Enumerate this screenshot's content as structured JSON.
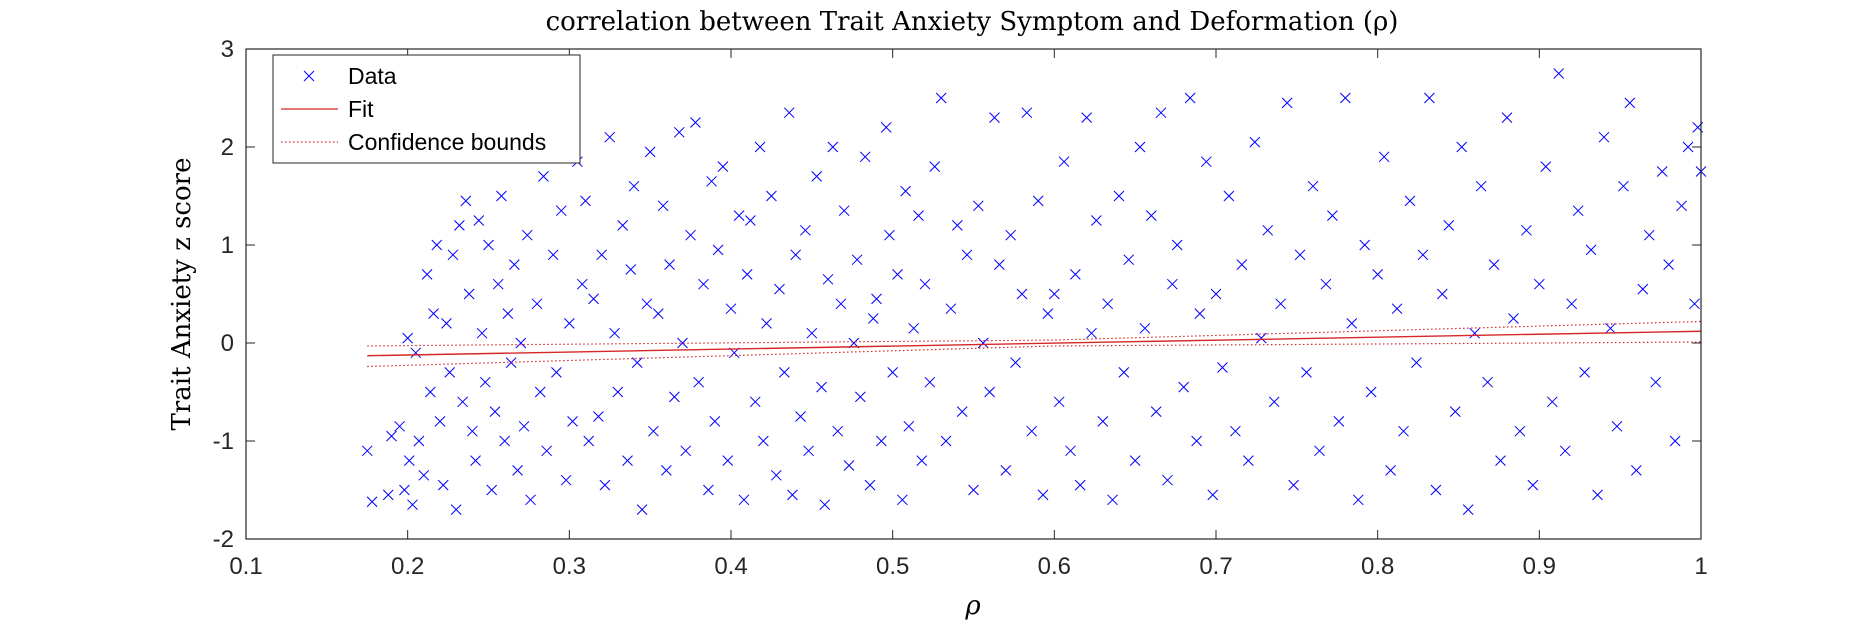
{
  "colors": {
    "data": "#0000ff",
    "fit": "#d62728",
    "bounds": "#d62728",
    "axis": "#262626"
  },
  "chart_data": {
    "type": "scatter",
    "title": "correlation between Trait Anxiety Symptom and Deformation (ρ)",
    "xlabel": "ρ",
    "ylabel": "Trait Anxiety z score",
    "xlim": [
      0.1,
      1.0
    ],
    "ylim": [
      -2,
      3
    ],
    "x_ticks": [
      {
        "value": 0.1,
        "label": "0.1"
      },
      {
        "value": 0.2,
        "label": "0.2"
      },
      {
        "value": 0.3,
        "label": "0.3"
      },
      {
        "value": 0.4,
        "label": "0.4"
      },
      {
        "value": 0.5,
        "label": "0.5"
      },
      {
        "value": 0.6,
        "label": "0.6"
      },
      {
        "value": 0.7,
        "label": "0.7"
      },
      {
        "value": 0.8,
        "label": "0.8"
      },
      {
        "value": 0.9,
        "label": "0.9"
      },
      {
        "value": 1.0,
        "label": "1"
      }
    ],
    "y_ticks": [
      {
        "value": -2,
        "label": "-2"
      },
      {
        "value": -1,
        "label": "-1"
      },
      {
        "value": 0,
        "label": "0"
      },
      {
        "value": 1,
        "label": "1"
      },
      {
        "value": 2,
        "label": "2"
      },
      {
        "value": 3,
        "label": "3"
      }
    ],
    "grid": false,
    "legend_position": "top-left",
    "legend": [
      {
        "key": "data",
        "label": "Data"
      },
      {
        "key": "fit",
        "label": "Fit"
      },
      {
        "key": "bounds",
        "label": "Confidence bounds"
      }
    ],
    "fit": {
      "x": [
        0.175,
        1.0
      ],
      "y": [
        -0.13,
        0.12
      ]
    },
    "confidence_bounds": {
      "upper": {
        "x": [
          0.175,
          0.6,
          1.0
        ],
        "y": [
          -0.03,
          0.03,
          0.22
        ]
      },
      "lower": {
        "x": [
          0.175,
          0.6,
          1.0
        ],
        "y": [
          -0.24,
          -0.03,
          0.01
        ]
      }
    },
    "series": [
      {
        "name": "Data",
        "points": [
          [
            0.175,
            -1.1
          ],
          [
            0.178,
            -1.62
          ],
          [
            0.188,
            -1.55
          ],
          [
            0.19,
            -0.95
          ],
          [
            0.195,
            -0.85
          ],
          [
            0.198,
            -1.5
          ],
          [
            0.2,
            0.05
          ],
          [
            0.201,
            -1.2
          ],
          [
            0.203,
            -1.65
          ],
          [
            0.205,
            -0.1
          ],
          [
            0.207,
            -1.0
          ],
          [
            0.21,
            -1.35
          ],
          [
            0.212,
            0.7
          ],
          [
            0.214,
            -0.5
          ],
          [
            0.216,
            0.3
          ],
          [
            0.218,
            1.0
          ],
          [
            0.22,
            -0.8
          ],
          [
            0.222,
            -1.45
          ],
          [
            0.224,
            0.2
          ],
          [
            0.226,
            -0.3
          ],
          [
            0.228,
            0.9
          ],
          [
            0.23,
            -1.7
          ],
          [
            0.232,
            1.2
          ],
          [
            0.234,
            -0.6
          ],
          [
            0.236,
            1.45
          ],
          [
            0.238,
            0.5
          ],
          [
            0.24,
            -0.9
          ],
          [
            0.242,
            -1.2
          ],
          [
            0.244,
            1.25
          ],
          [
            0.246,
            0.1
          ],
          [
            0.248,
            -0.4
          ],
          [
            0.25,
            1.0
          ],
          [
            0.252,
            -1.5
          ],
          [
            0.254,
            -0.7
          ],
          [
            0.256,
            0.6
          ],
          [
            0.258,
            1.5
          ],
          [
            0.26,
            -1.0
          ],
          [
            0.262,
            0.3
          ],
          [
            0.264,
            -0.2
          ],
          [
            0.266,
            0.8
          ],
          [
            0.268,
            -1.3
          ],
          [
            0.27,
            0.0
          ],
          [
            0.272,
            -0.85
          ],
          [
            0.274,
            1.1
          ],
          [
            0.276,
            -1.6
          ],
          [
            0.28,
            0.4
          ],
          [
            0.282,
            -0.5
          ],
          [
            0.284,
            1.7
          ],
          [
            0.286,
            -1.1
          ],
          [
            0.29,
            0.9
          ],
          [
            0.292,
            -0.3
          ],
          [
            0.295,
            1.35
          ],
          [
            0.298,
            -1.4
          ],
          [
            0.3,
            0.2
          ],
          [
            0.302,
            -0.8
          ],
          [
            0.305,
            1.85
          ],
          [
            0.308,
            0.6
          ],
          [
            0.31,
            1.45
          ],
          [
            0.312,
            -1.0
          ],
          [
            0.315,
            0.45
          ],
          [
            0.318,
            -0.75
          ],
          [
            0.32,
            0.9
          ],
          [
            0.322,
            -1.45
          ],
          [
            0.325,
            2.1
          ],
          [
            0.328,
            0.1
          ],
          [
            0.33,
            -0.5
          ],
          [
            0.333,
            1.2
          ],
          [
            0.336,
            -1.2
          ],
          [
            0.338,
            0.75
          ],
          [
            0.34,
            1.6
          ],
          [
            0.342,
            -0.2
          ],
          [
            0.345,
            -1.7
          ],
          [
            0.348,
            0.4
          ],
          [
            0.35,
            1.95
          ],
          [
            0.352,
            -0.9
          ],
          [
            0.355,
            0.3
          ],
          [
            0.358,
            1.4
          ],
          [
            0.36,
            -1.3
          ],
          [
            0.362,
            0.8
          ],
          [
            0.365,
            -0.55
          ],
          [
            0.368,
            2.15
          ],
          [
            0.37,
            0.0
          ],
          [
            0.372,
            -1.1
          ],
          [
            0.375,
            1.1
          ],
          [
            0.378,
            2.25
          ],
          [
            0.38,
            -0.4
          ],
          [
            0.383,
            0.6
          ],
          [
            0.386,
            -1.5
          ],
          [
            0.388,
            1.65
          ],
          [
            0.39,
            -0.8
          ],
          [
            0.392,
            0.95
          ],
          [
            0.395,
            1.8
          ],
          [
            0.398,
            -1.2
          ],
          [
            0.4,
            0.35
          ],
          [
            0.402,
            -0.1
          ],
          [
            0.405,
            1.3
          ],
          [
            0.408,
            -1.6
          ],
          [
            0.41,
            0.7
          ],
          [
            0.412,
            1.25
          ],
          [
            0.415,
            -0.6
          ],
          [
            0.418,
            2.0
          ],
          [
            0.42,
            -1.0
          ],
          [
            0.422,
            0.2
          ],
          [
            0.425,
            1.5
          ],
          [
            0.428,
            -1.35
          ],
          [
            0.43,
            0.55
          ],
          [
            0.433,
            -0.3
          ],
          [
            0.436,
            2.35
          ],
          [
            0.438,
            -1.55
          ],
          [
            0.44,
            0.9
          ],
          [
            0.443,
            -0.75
          ],
          [
            0.446,
            1.15
          ],
          [
            0.448,
            -1.1
          ],
          [
            0.45,
            0.1
          ],
          [
            0.453,
            1.7
          ],
          [
            0.456,
            -0.45
          ],
          [
            0.458,
            -1.65
          ],
          [
            0.46,
            0.65
          ],
          [
            0.463,
            2.0
          ],
          [
            0.466,
            -0.9
          ],
          [
            0.468,
            0.4
          ],
          [
            0.47,
            1.35
          ],
          [
            0.473,
            -1.25
          ],
          [
            0.476,
            0.0
          ],
          [
            0.478,
            0.85
          ],
          [
            0.48,
            -0.55
          ],
          [
            0.483,
            1.9
          ],
          [
            0.486,
            -1.45
          ],
          [
            0.488,
            0.25
          ],
          [
            0.49,
            0.45
          ],
          [
            0.493,
            -1.0
          ],
          [
            0.496,
            2.2
          ],
          [
            0.498,
            1.1
          ],
          [
            0.5,
            -0.3
          ],
          [
            0.503,
            0.7
          ],
          [
            0.506,
            -1.6
          ],
          [
            0.508,
            1.55
          ],
          [
            0.51,
            -0.85
          ],
          [
            0.513,
            0.15
          ],
          [
            0.516,
            1.3
          ],
          [
            0.518,
            -1.2
          ],
          [
            0.52,
            0.6
          ],
          [
            0.523,
            -0.4
          ],
          [
            0.526,
            1.8
          ],
          [
            0.53,
            2.5
          ],
          [
            0.533,
            -1.0
          ],
          [
            0.536,
            0.35
          ],
          [
            0.54,
            1.2
          ],
          [
            0.543,
            -0.7
          ],
          [
            0.546,
            0.9
          ],
          [
            0.55,
            -1.5
          ],
          [
            0.553,
            1.4
          ],
          [
            0.556,
            0.0
          ],
          [
            0.56,
            -0.5
          ],
          [
            0.563,
            2.3
          ],
          [
            0.566,
            0.8
          ],
          [
            0.57,
            -1.3
          ],
          [
            0.573,
            1.1
          ],
          [
            0.576,
            -0.2
          ],
          [
            0.58,
            0.5
          ],
          [
            0.583,
            2.35
          ],
          [
            0.586,
            -0.9
          ],
          [
            0.59,
            1.45
          ],
          [
            0.593,
            -1.55
          ],
          [
            0.596,
            0.3
          ],
          [
            0.6,
            0.5
          ],
          [
            0.603,
            -0.6
          ],
          [
            0.606,
            1.85
          ],
          [
            0.61,
            -1.1
          ],
          [
            0.613,
            0.7
          ],
          [
            0.616,
            -1.45
          ],
          [
            0.62,
            2.3
          ],
          [
            0.623,
            0.1
          ],
          [
            0.626,
            1.25
          ],
          [
            0.63,
            -0.8
          ],
          [
            0.633,
            0.4
          ],
          [
            0.636,
            -1.6
          ],
          [
            0.64,
            1.5
          ],
          [
            0.643,
            -0.3
          ],
          [
            0.646,
            0.85
          ],
          [
            0.65,
            -1.2
          ],
          [
            0.653,
            2.0
          ],
          [
            0.656,
            0.15
          ],
          [
            0.66,
            1.3
          ],
          [
            0.663,
            -0.7
          ],
          [
            0.666,
            2.35
          ],
          [
            0.67,
            -1.4
          ],
          [
            0.673,
            0.6
          ],
          [
            0.676,
            1.0
          ],
          [
            0.68,
            -0.45
          ],
          [
            0.684,
            2.5
          ],
          [
            0.688,
            -1.0
          ],
          [
            0.69,
            0.3
          ],
          [
            0.694,
            1.85
          ],
          [
            0.698,
            -1.55
          ],
          [
            0.7,
            0.5
          ],
          [
            0.704,
            -0.25
          ],
          [
            0.708,
            1.5
          ],
          [
            0.712,
            -0.9
          ],
          [
            0.716,
            0.8
          ],
          [
            0.72,
            -1.2
          ],
          [
            0.724,
            2.05
          ],
          [
            0.728,
            0.05
          ],
          [
            0.732,
            1.15
          ],
          [
            0.736,
            -0.6
          ],
          [
            0.74,
            0.4
          ],
          [
            0.744,
            2.45
          ],
          [
            0.748,
            -1.45
          ],
          [
            0.752,
            0.9
          ],
          [
            0.756,
            -0.3
          ],
          [
            0.76,
            1.6
          ],
          [
            0.764,
            -1.1
          ],
          [
            0.768,
            0.6
          ],
          [
            0.772,
            1.3
          ],
          [
            0.776,
            -0.8
          ],
          [
            0.78,
            2.5
          ],
          [
            0.784,
            0.2
          ],
          [
            0.788,
            -1.6
          ],
          [
            0.792,
            1.0
          ],
          [
            0.796,
            -0.5
          ],
          [
            0.8,
            0.7
          ],
          [
            0.804,
            1.9
          ],
          [
            0.808,
            -1.3
          ],
          [
            0.812,
            0.35
          ],
          [
            0.816,
            -0.9
          ],
          [
            0.82,
            1.45
          ],
          [
            0.824,
            -0.2
          ],
          [
            0.828,
            0.9
          ],
          [
            0.832,
            2.5
          ],
          [
            0.836,
            -1.5
          ],
          [
            0.84,
            0.5
          ],
          [
            0.844,
            1.2
          ],
          [
            0.848,
            -0.7
          ],
          [
            0.852,
            2.0
          ],
          [
            0.856,
            -1.7
          ],
          [
            0.86,
            0.1
          ],
          [
            0.864,
            1.6
          ],
          [
            0.868,
            -0.4
          ],
          [
            0.872,
            0.8
          ],
          [
            0.876,
            -1.2
          ],
          [
            0.88,
            2.3
          ],
          [
            0.884,
            0.25
          ],
          [
            0.888,
            -0.9
          ],
          [
            0.892,
            1.15
          ],
          [
            0.896,
            -1.45
          ],
          [
            0.9,
            0.6
          ],
          [
            0.904,
            1.8
          ],
          [
            0.908,
            -0.6
          ],
          [
            0.912,
            2.75
          ],
          [
            0.916,
            -1.1
          ],
          [
            0.92,
            0.4
          ],
          [
            0.924,
            1.35
          ],
          [
            0.928,
            -0.3
          ],
          [
            0.932,
            0.95
          ],
          [
            0.936,
            -1.55
          ],
          [
            0.94,
            2.1
          ],
          [
            0.944,
            0.15
          ],
          [
            0.948,
            -0.85
          ],
          [
            0.952,
            1.6
          ],
          [
            0.956,
            2.45
          ],
          [
            0.96,
            -1.3
          ],
          [
            0.964,
            0.55
          ],
          [
            0.968,
            1.1
          ],
          [
            0.972,
            -0.4
          ],
          [
            0.976,
            1.75
          ],
          [
            0.98,
            0.8
          ],
          [
            0.984,
            -1.0
          ],
          [
            0.988,
            1.4
          ],
          [
            0.992,
            2.0
          ],
          [
            0.996,
            0.4
          ],
          [
            0.998,
            2.2
          ],
          [
            1.0,
            1.75
          ]
        ]
      }
    ]
  }
}
